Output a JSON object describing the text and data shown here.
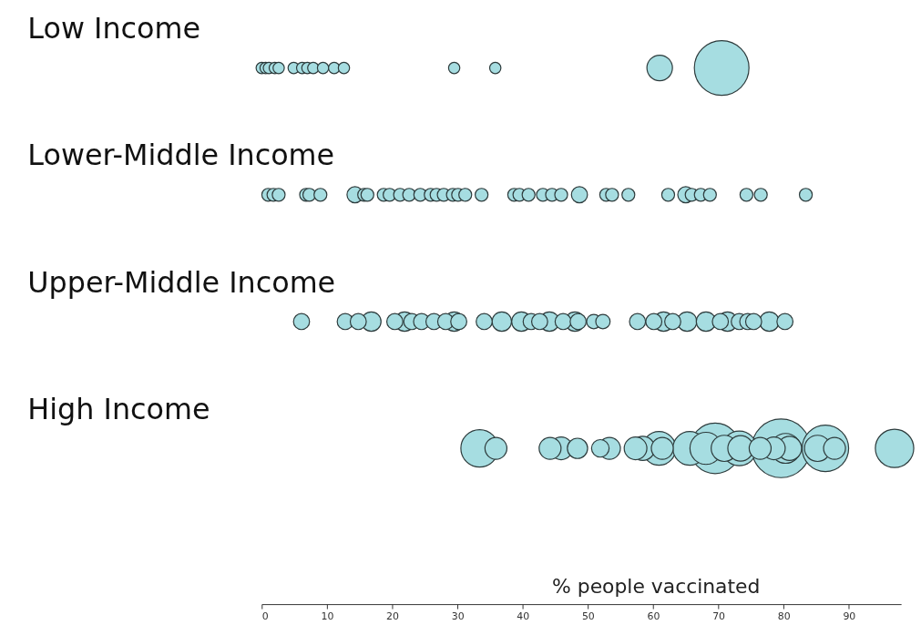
{
  "chart_data": {
    "type": "bubble",
    "orientation": "horizontal",
    "categories": [
      "Low Income",
      "Lower-Middle Income",
      "Upper-Middle Income",
      "High Income"
    ],
    "xlim": [
      0,
      98
    ],
    "xticks": [
      0,
      10,
      20,
      30,
      40,
      50,
      60,
      70,
      80,
      90
    ],
    "xlabel": "% people vaccinated",
    "series": [
      {
        "color": "#a6dde1",
        "x": [
          "Low Income",
          "Low Income",
          "Low Income",
          "Low Income",
          "Low Income",
          "Low Income",
          "Low Income",
          "Low Income",
          "Low Income",
          "Low Income",
          "Low Income",
          "Low Income",
          "Low Income",
          "Low Income",
          "Low Income",
          "Low Income"
        ],
        "values": [
          0,
          0.6,
          1.1,
          2,
          2.6,
          4.9,
          6.2,
          7,
          7.9,
          9.4,
          11.1,
          12.6,
          29.5,
          35.8,
          61,
          70.5
        ],
        "sizes": [
          0.037,
          0.037,
          0.037,
          0.037,
          0.037,
          0.037,
          0.037,
          0.037,
          0.037,
          0.037,
          0.037,
          0.037,
          0.037,
          0.037,
          0.19,
          0.87
        ]
      },
      {
        "color": "#a6dde1",
        "x": [
          "Lower-Middle Income",
          "Lower-Middle Income",
          "Lower-Middle Income",
          "Lower-Middle Income",
          "Lower-Middle Income",
          "Lower-Middle Income",
          "Lower-Middle Income",
          "Lower-Middle Income",
          "Lower-Middle Income",
          "Lower-Middle Income",
          "Lower-Middle Income",
          "Lower-Middle Income",
          "Lower-Middle Income",
          "Lower-Middle Income",
          "Lower-Middle Income",
          "Lower-Middle Income",
          "Lower-Middle Income",
          "Lower-Middle Income",
          "Lower-Middle Income",
          "Lower-Middle Income",
          "Lower-Middle Income",
          "Lower-Middle Income",
          "Lower-Middle Income",
          "Lower-Middle Income",
          "Lower-Middle Income",
          "Lower-Middle Income",
          "Lower-Middle Income",
          "Lower-Middle Income",
          "Lower-Middle Income",
          "Lower-Middle Income",
          "Lower-Middle Income",
          "Lower-Middle Income",
          "Lower-Middle Income",
          "Lower-Middle Income",
          "Lower-Middle Income",
          "Lower-Middle Income",
          "Lower-Middle Income",
          "Lower-Middle Income",
          "Lower-Middle Income"
        ],
        "values": [
          1.0,
          1.8,
          2.6,
          6.8,
          7.3,
          9.0,
          14.3,
          15.7,
          16.2,
          18.7,
          19.6,
          21.2,
          22.6,
          24.3,
          25.9,
          26.8,
          27.9,
          29.3,
          30.1,
          31.2,
          33.7,
          38.7,
          39.5,
          40.9,
          43.1,
          44.5,
          45.9,
          48.7,
          52.8,
          53.7,
          56.2,
          62.3,
          65.0,
          65.9,
          67.3,
          68.7,
          74.3,
          76.5,
          83.4
        ],
        "sizes": [
          0.048,
          0.048,
          0.048,
          0.048,
          0.048,
          0.048,
          0.075,
          0.048,
          0.048,
          0.048,
          0.048,
          0.048,
          0.048,
          0.048,
          0.048,
          0.048,
          0.048,
          0.048,
          0.048,
          0.048,
          0.048,
          0.048,
          0.048,
          0.048,
          0.048,
          0.048,
          0.048,
          0.075,
          0.048,
          0.048,
          0.048,
          0.048,
          0.075,
          0.048,
          0.048,
          0.048,
          0.048,
          0.048,
          0.048
        ]
      },
      {
        "color": "#a6dde1",
        "x": [
          "Upper-Middle Income",
          "Upper-Middle Income",
          "Upper-Middle Income",
          "Upper-Middle Income",
          "Upper-Middle Income",
          "Upper-Middle Income",
          "Upper-Middle Income",
          "Upper-Middle Income",
          "Upper-Middle Income",
          "Upper-Middle Income",
          "Upper-Middle Income",
          "Upper-Middle Income",
          "Upper-Middle Income",
          "Upper-Middle Income",
          "Upper-Middle Income",
          "Upper-Middle Income",
          "Upper-Middle Income",
          "Upper-Middle Income",
          "Upper-Middle Income",
          "Upper-Middle Income",
          "Upper-Middle Income",
          "Upper-Middle Income",
          "Upper-Middle Income",
          "Upper-Middle Income",
          "Upper-Middle Income",
          "Upper-Middle Income",
          "Upper-Middle Income",
          "Upper-Middle Income",
          "Upper-Middle Income",
          "Upper-Middle Income",
          "Upper-Middle Income",
          "Upper-Middle Income",
          "Upper-Middle Income",
          "Upper-Middle Income",
          "Upper-Middle Income",
          "Upper-Middle Income"
        ],
        "values": [
          6.1,
          12.8,
          14.8,
          16.8,
          20.4,
          21.9,
          23.0,
          24.5,
          26.4,
          28.2,
          29.5,
          30.2,
          34.1,
          36.8,
          39.8,
          41.3,
          42.6,
          44.1,
          46.2,
          48.0,
          48.5,
          50.9,
          52.3,
          57.6,
          60.1,
          61.6,
          63.0,
          65.2,
          68.1,
          70.3,
          71.4,
          73.2,
          74.5,
          75.4,
          77.8,
          80.2
        ],
        "sizes": [
          0.075,
          0.075,
          0.075,
          0.11,
          0.075,
          0.11,
          0.075,
          0.075,
          0.075,
          0.075,
          0.11,
          0.075,
          0.075,
          0.11,
          0.11,
          0.075,
          0.075,
          0.11,
          0.075,
          0.11,
          0.075,
          0.06,
          0.06,
          0.075,
          0.075,
          0.11,
          0.075,
          0.11,
          0.11,
          0.075,
          0.11,
          0.075,
          0.075,
          0.075,
          0.11,
          0.075
        ]
      },
      {
        "color": "#a6dde1",
        "x": [
          "High Income",
          "High Income",
          "High Income",
          "High Income",
          "High Income",
          "High Income",
          "High Income",
          "High Income",
          "High Income",
          "High Income",
          "High Income",
          "High Income",
          "High Income",
          "High Income",
          "High Income",
          "High Income",
          "High Income",
          "High Income",
          "High Income",
          "High Income",
          "High Income",
          "High Income",
          "High Income",
          "High Income",
          "High Income",
          "High Income"
        ],
        "values": [
          33.4,
          35.9,
          44.2,
          45.9,
          48.4,
          51.9,
          53.3,
          57.3,
          58.4,
          60.9,
          61.4,
          65.6,
          69.5,
          68.1,
          70.9,
          73.2,
          73.4,
          76.4,
          78.5,
          79.6,
          80.9,
          80.3,
          86.4,
          85.2,
          87.8,
          97
        ],
        "sizes": [
          0.41,
          0.14,
          0.14,
          0.15,
          0.12,
          0.09,
          0.14,
          0.15,
          0.17,
          0.33,
          0.14,
          0.33,
          0.74,
          0.3,
          0.2,
          0.35,
          0.19,
          0.14,
          0.15,
          1,
          0.17,
          0.26,
          0.63,
          0.2,
          0.14,
          0.43
        ]
      }
    ]
  }
}
